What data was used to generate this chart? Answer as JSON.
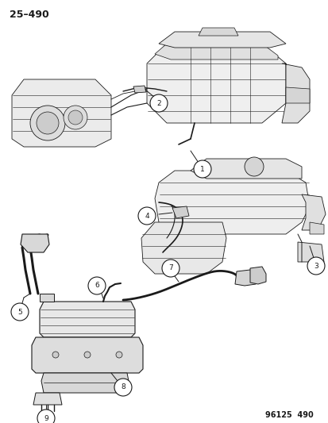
{
  "page_number": "25–490",
  "footer": "96125  490",
  "background_color": "#ffffff",
  "text_color": "#1a1a1a",
  "line_color": "#1a1a1a",
  "figsize": [
    4.14,
    5.33
  ],
  "dpi": 100,
  "callout_r": 0.013
}
